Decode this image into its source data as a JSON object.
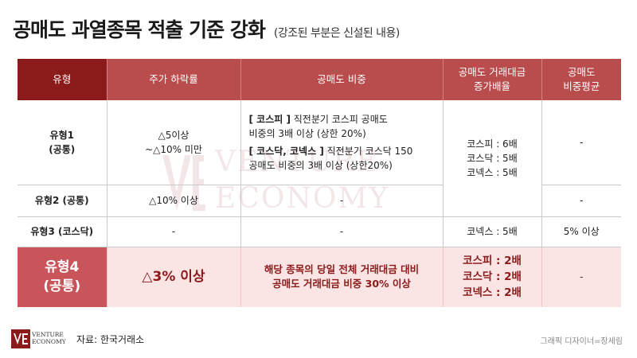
{
  "title": "공매도 과열종목 적출 기준 강화",
  "subtitle": "(강조된 부분은 신설된 내용)",
  "watermark": {
    "line1": "VENTURE",
    "line2": "ECONOMY"
  },
  "table": {
    "headers": [
      "유형",
      "주가 하락률",
      "공매도 비중",
      "공매도 거래대금\n증가배율",
      "공매도\n비중평균"
    ],
    "rows": [
      {
        "type_line1": "유형1",
        "type_line2": "(공통)",
        "drop_line1": "△5이상",
        "drop_line2": "~△10% 미만",
        "ratio_p1_tag": "[ 코스피 ]",
        "ratio_p1_rest": " 직전분기 코스피 공매도",
        "ratio_p1_line2": "비중의 3배 이상 (상한 20%)",
        "ratio_p2_tag": "[ 코스닥, 코넥스 ]",
        "ratio_p2_rest": " 직전분기 코스닥 150",
        "ratio_p2_line2": "공매도 비중의 3배 이상 (상한20%)",
        "increase_line1": "코스피 : 6배",
        "increase_line2": "코스닥 : 5배",
        "increase_line3": "코넥스 : 5배",
        "avg": "-"
      },
      {
        "type": "유형2 (공통)",
        "drop": "△10% 이상",
        "ratio": "-",
        "avg": "-"
      },
      {
        "type": "유형3 (코스닥)",
        "drop": "-",
        "ratio": "-",
        "increase": "코넥스 : 5배",
        "avg": "5% 이상"
      },
      {
        "type_line1": "유형4",
        "type_line2": "(공통)",
        "drop": "△3% 이상",
        "ratio_line1": "해당 종목의 당일 전체 거래대금 대비",
        "ratio_line2": "공매도 거래대금 비중 30% 이상",
        "increase_line1": "코스피 : 2배",
        "increase_line2": "코스닥 : 2배",
        "increase_line3": "코넥스 : 2배",
        "avg": "-"
      }
    ]
  },
  "footer": {
    "brand_line1": "VENTURE",
    "brand_line2": "ECONOMY",
    "source": "자료: 한국거래소",
    "credit": "그래픽 디자이너=장세림"
  },
  "colors": {
    "header_dark": "#8b1a1a",
    "header": "#b94c4c",
    "highlight_bg": "#fbe4e4",
    "highlight_cell": "#c9555b"
  }
}
